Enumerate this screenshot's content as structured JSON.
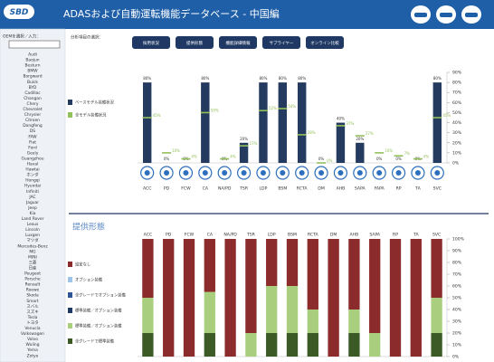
{
  "header": {
    "logo": "SBD",
    "title": "ADASおよび自動運転機能データベース - 中国編"
  },
  "sidebar": {
    "label": "OEMを選択／入力：",
    "oems": [
      "Audi",
      "Baojun",
      "Besturn",
      "BMW",
      "Borgward",
      "Buick",
      "BYD",
      "Cadillac",
      "Changan",
      "Chery",
      "Chevrolet",
      "Chrysler",
      "Citroen",
      "Dongfeng",
      "DS",
      "FAW",
      "Fiat",
      "Ford",
      "Geely",
      "Guangzhou",
      "Haval",
      "Hawtai",
      "ホンダ",
      "Hongqi",
      "Hyundai",
      "Infiniti",
      "JAC",
      "Jaguar",
      "Jeep",
      "Kia",
      "Land Rover",
      "Lexus",
      "Lincoln",
      "Luxgen",
      "マツダ",
      "Mercedes-Benz",
      "MG",
      "MINI",
      "三菱",
      "日産",
      "Peugeot",
      "Porsche",
      "Renault",
      "Roewe",
      "Skoda",
      "Smart",
      "スバル",
      "スズキ",
      "Tesla",
      "トヨタ",
      "Venucia",
      "Volkswagen",
      "Volvo",
      "Wuling",
      "Yema",
      "Zotye"
    ]
  },
  "toolbar": {
    "label": "分析項目の選択：",
    "buttons": [
      "採用状況",
      "提供形態",
      "機能詳細情報",
      "サプライヤー",
      "オンライン比較"
    ]
  },
  "chart_data": [
    {
      "type": "bar",
      "categories": [
        "ACC",
        "PD",
        "FCW",
        "CA",
        "NA/PD",
        "TSR",
        "LDP",
        "BSM",
        "RCTA",
        "DM",
        "AHB",
        "SAPA",
        "FAPA",
        "RP",
        "TA",
        "SVC"
      ],
      "series": [
        {
          "name": "ベースモデル装備状況",
          "color": "#243a5e",
          "style": "bar",
          "values": [
            80,
            0,
            0,
            80,
            0,
            20,
            80,
            80,
            80,
            0,
            40,
            20,
            0,
            0,
            0,
            80
          ],
          "value_labels": [
            "80%",
            "0%",
            "0%",
            "80%",
            "0%",
            "20%",
            "80%",
            "80%",
            "80%",
            "0%",
            "40%",
            "20%",
            "0%",
            "0%",
            "0%",
            "80%"
          ]
        },
        {
          "name": "全モデル装備状況",
          "color": "#92c05a",
          "style": "marker",
          "values": [
            45,
            10,
            4,
            50,
            4,
            17,
            52,
            54,
            28,
            0,
            37,
            27,
            10,
            7,
            4,
            45
          ],
          "value_labels": [
            "45%",
            "10%",
            "4%",
            "50%",
            "4%",
            "17%",
            "52%",
            "54%",
            "28%",
            "0%",
            "37%",
            "27%",
            "10%",
            "7%",
            "4%",
            "45%"
          ]
        }
      ],
      "ylim": [
        0,
        90
      ],
      "yticks": [
        {
          "value": 0,
          "label": "0%"
        },
        {
          "value": 10,
          "label": "10%"
        },
        {
          "value": 20,
          "label": "20%"
        },
        {
          "value": 30,
          "label": "30%"
        },
        {
          "value": 40,
          "label": "40%"
        },
        {
          "value": 50,
          "label": "50%"
        },
        {
          "value": 60,
          "label": "60%"
        },
        {
          "value": 70,
          "label": "70%"
        },
        {
          "value": 80,
          "label": "80%"
        },
        {
          "value": 90,
          "label": "90%"
        }
      ],
      "grid": false
    },
    {
      "type": "stacked_bar",
      "title": "提供形態",
      "categories": [
        "ACC",
        "PD",
        "FCW",
        "CA",
        "NA/PD",
        "TSR",
        "LDP",
        "BSM",
        "RCTA",
        "DM",
        "AHB",
        "SAPA",
        "RP",
        "TA",
        "SVC"
      ],
      "series": [
        {
          "name": "設定なし",
          "color": "#8b2b2b",
          "values": [
            50,
            100,
            100,
            45,
            100,
            80,
            40,
            40,
            60,
            100,
            60,
            80,
            100,
            100,
            50
          ]
        },
        {
          "name": "オプション装備",
          "color": "#9dc3e6",
          "values": [
            0,
            0,
            0,
            0,
            0,
            0,
            0,
            0,
            0,
            0,
            0,
            0,
            0,
            0,
            0
          ]
        },
        {
          "name": "全グレードでオプション装備",
          "color": "#2e5597",
          "values": [
            0,
            0,
            0,
            0,
            0,
            0,
            0,
            0,
            0,
            0,
            0,
            0,
            0,
            0,
            0
          ]
        },
        {
          "name": "標準装備／オプション装備",
          "color": "#1f3864",
          "values": [
            0,
            0,
            0,
            0,
            0,
            0,
            0,
            0,
            0,
            0,
            0,
            0,
            0,
            0,
            0
          ]
        },
        {
          "name": "標準装備／オプション装備",
          "color": "#a9cf7e",
          "values": [
            30,
            0,
            0,
            35,
            0,
            20,
            40,
            40,
            20,
            0,
            20,
            20,
            0,
            0,
            30
          ]
        },
        {
          "name": "全グレードで標準装備",
          "color": "#3b5a26",
          "values": [
            20,
            0,
            0,
            20,
            0,
            0,
            20,
            20,
            20,
            0,
            20,
            0,
            0,
            0,
            20
          ]
        }
      ],
      "ylim": [
        0,
        100
      ],
      "yticks": [
        {
          "value": 0,
          "label": "0%"
        },
        {
          "value": 10,
          "label": "10%"
        },
        {
          "value": 20,
          "label": "20%"
        },
        {
          "value": 30,
          "label": "30%"
        },
        {
          "value": 40,
          "label": "40%"
        },
        {
          "value": 50,
          "label": "50%"
        },
        {
          "value": 60,
          "label": "60%"
        },
        {
          "value": 70,
          "label": "70%"
        },
        {
          "value": 80,
          "label": "80%"
        },
        {
          "value": 90,
          "label": "90%"
        },
        {
          "value": 100,
          "label": "100%"
        }
      ],
      "grid": false
    }
  ]
}
